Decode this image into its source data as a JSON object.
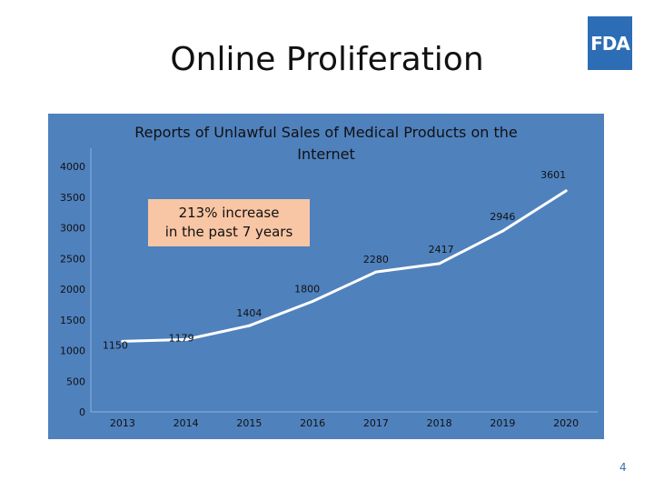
{
  "slide": {
    "title": "Online Proliferation",
    "logo_text": "FDA",
    "page_number": "4"
  },
  "callout": {
    "line1": "213% increase",
    "line2": "in the past 7 years"
  },
  "chart_data": {
    "type": "line",
    "title": "Reports of Unlawful Sales of Medical Products on the Internet",
    "title_lines": [
      "Reports of Unlawful Sales of Medical Products on the",
      "Internet"
    ],
    "categories": [
      "2013",
      "2014",
      "2015",
      "2016",
      "2017",
      "2018",
      "2019",
      "2020"
    ],
    "series": [
      {
        "values": [
          1150,
          1179,
          1404,
          1800,
          2280,
          2417,
          2946,
          3601
        ]
      }
    ],
    "data_labels": [
      "1150",
      "1179",
      "1404",
      "1800",
      "2280",
      "2417",
      "2946",
      "3601"
    ],
    "y_ticks": [
      "0",
      "500",
      "1000",
      "1500",
      "2000",
      "2500",
      "3000",
      "3500",
      "4000"
    ],
    "ylim": [
      0,
      4000
    ],
    "xlabel": "",
    "ylabel": "",
    "grid": false,
    "legend": "none",
    "colors": {
      "background": "#4f81bd",
      "line": "#ffffff",
      "text": "#111111"
    }
  }
}
